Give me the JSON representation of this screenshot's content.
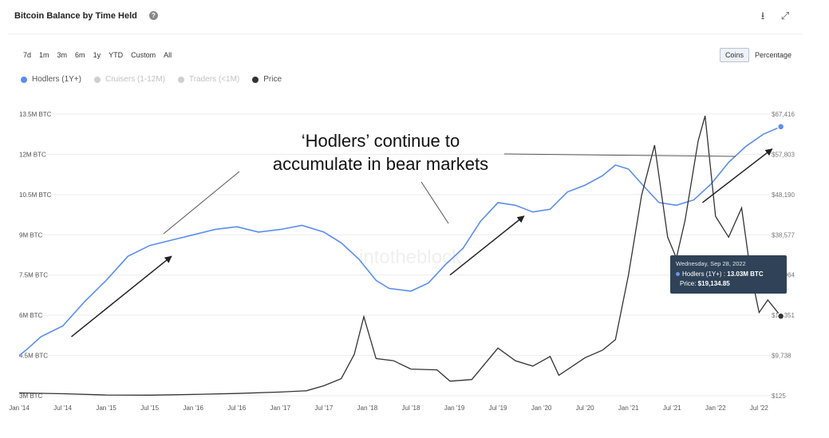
{
  "header": {
    "title": "Bitcoin Balance by Time Held",
    "help_icon": "question-circle-icon",
    "download_icon": "download-icon",
    "expand_icon": "expand-icon"
  },
  "ranges": [
    "7d",
    "1m",
    "3m",
    "6m",
    "1y",
    "YTD",
    "Custom",
    "All"
  ],
  "view_toggle": {
    "coins": "Coins",
    "percentage": "Percentage",
    "active": "Coins"
  },
  "legend": [
    {
      "label": "Hodlers (1Y+)",
      "color": "#5b8def",
      "active": true
    },
    {
      "label": "Cruisers (1-12M)",
      "color": "#cfcfcf",
      "active": false
    },
    {
      "label": "Traders (<1M)",
      "color": "#cfcfcf",
      "active": false
    },
    {
      "label": "Price",
      "color": "#333333",
      "active": true
    }
  ],
  "annotation": {
    "line1": "‘Hodlers’ continue to",
    "line2": "accumulate in bear markets"
  },
  "watermark": "intotheblock",
  "tooltip": {
    "date": "Wednesday, Sep 28, 2022",
    "series_label": "Hodlers (1Y+) : ",
    "series_value": "13.03M BTC",
    "price_label": "Price: ",
    "price_value": "$19,134.85"
  },
  "chart_data": {
    "type": "line",
    "x_ticks": [
      "Jan '14",
      "Jul '14",
      "Jan '15",
      "Jul '15",
      "Jan '16",
      "Jul '16",
      "Jan '17",
      "Jul '17",
      "Jan '18",
      "Jul '18",
      "Jan '19",
      "Jul '19",
      "Jan '20",
      "Jul '20",
      "Jan '21",
      "Jul '21",
      "Jan '22",
      "Jul '22"
    ],
    "y_left_ticks": [
      "13.5M BTC",
      "12M BTC",
      "10.5M BTC",
      "9M BTC",
      "7.5M BTC",
      "6M BTC",
      "4.5M BTC",
      "3M BTC"
    ],
    "y_right_ticks": [
      "$67,416",
      "$57,803",
      "$48,190",
      "$38,577",
      "$28,964",
      "$19,351",
      "$9,738",
      "$125"
    ],
    "y_left_range": [
      3000000,
      13500000
    ],
    "y_right_range": [
      125,
      67416
    ],
    "x_range": [
      2014.0,
      2022.9
    ],
    "series": [
      {
        "name": "Hodlers (1Y+)",
        "axis": "left",
        "color": "#5b8def",
        "points": [
          [
            2014.0,
            4.5
          ],
          [
            2014.08,
            4.7
          ],
          [
            2014.25,
            5.2
          ],
          [
            2014.5,
            5.6
          ],
          [
            2014.75,
            6.5
          ],
          [
            2015.0,
            7.3
          ],
          [
            2015.25,
            8.2
          ],
          [
            2015.5,
            8.6
          ],
          [
            2015.75,
            8.8
          ],
          [
            2016.0,
            9.0
          ],
          [
            2016.25,
            9.2
          ],
          [
            2016.5,
            9.3
          ],
          [
            2016.75,
            9.1
          ],
          [
            2017.0,
            9.2
          ],
          [
            2017.25,
            9.35
          ],
          [
            2017.5,
            9.1
          ],
          [
            2017.7,
            8.7
          ],
          [
            2017.9,
            8.1
          ],
          [
            2018.1,
            7.3
          ],
          [
            2018.25,
            7.0
          ],
          [
            2018.5,
            6.9
          ],
          [
            2018.7,
            7.2
          ],
          [
            2018.9,
            7.9
          ],
          [
            2019.1,
            8.5
          ],
          [
            2019.3,
            9.5
          ],
          [
            2019.5,
            10.2
          ],
          [
            2019.7,
            10.1
          ],
          [
            2019.9,
            9.85
          ],
          [
            2020.1,
            9.95
          ],
          [
            2020.3,
            10.6
          ],
          [
            2020.5,
            10.85
          ],
          [
            2020.7,
            11.2
          ],
          [
            2020.85,
            11.6
          ],
          [
            2021.0,
            11.45
          ],
          [
            2021.15,
            10.9
          ],
          [
            2021.35,
            10.2
          ],
          [
            2021.55,
            10.1
          ],
          [
            2021.75,
            10.3
          ],
          [
            2021.95,
            10.9
          ],
          [
            2022.15,
            11.7
          ],
          [
            2022.35,
            12.3
          ],
          [
            2022.55,
            12.75
          ],
          [
            2022.75,
            13.03
          ]
        ]
      },
      {
        "name": "Price",
        "axis": "right",
        "color": "#333333",
        "points": [
          [
            2014.0,
            800
          ],
          [
            2014.5,
            600
          ],
          [
            2015.0,
            300
          ],
          [
            2015.5,
            250
          ],
          [
            2016.0,
            430
          ],
          [
            2016.5,
            650
          ],
          [
            2017.0,
            1000
          ],
          [
            2017.3,
            1300
          ],
          [
            2017.5,
            2500
          ],
          [
            2017.7,
            4200
          ],
          [
            2017.85,
            10000
          ],
          [
            2017.96,
            19000
          ],
          [
            2018.1,
            9000
          ],
          [
            2018.3,
            8500
          ],
          [
            2018.5,
            6500
          ],
          [
            2018.8,
            6300
          ],
          [
            2018.95,
            3600
          ],
          [
            2019.2,
            4000
          ],
          [
            2019.5,
            11500
          ],
          [
            2019.7,
            8500
          ],
          [
            2019.9,
            7200
          ],
          [
            2020.1,
            9500
          ],
          [
            2020.2,
            5000
          ],
          [
            2020.5,
            9200
          ],
          [
            2020.7,
            11000
          ],
          [
            2020.85,
            13500
          ],
          [
            2021.0,
            29000
          ],
          [
            2021.15,
            48000
          ],
          [
            2021.3,
            60000
          ],
          [
            2021.45,
            38000
          ],
          [
            2021.55,
            33000
          ],
          [
            2021.65,
            42000
          ],
          [
            2021.8,
            61000
          ],
          [
            2021.88,
            67000
          ],
          [
            2022.0,
            43000
          ],
          [
            2022.15,
            38000
          ],
          [
            2022.3,
            45000
          ],
          [
            2022.4,
            30000
          ],
          [
            2022.5,
            20000
          ],
          [
            2022.6,
            23000
          ],
          [
            2022.75,
            19134.85
          ]
        ]
      }
    ]
  }
}
